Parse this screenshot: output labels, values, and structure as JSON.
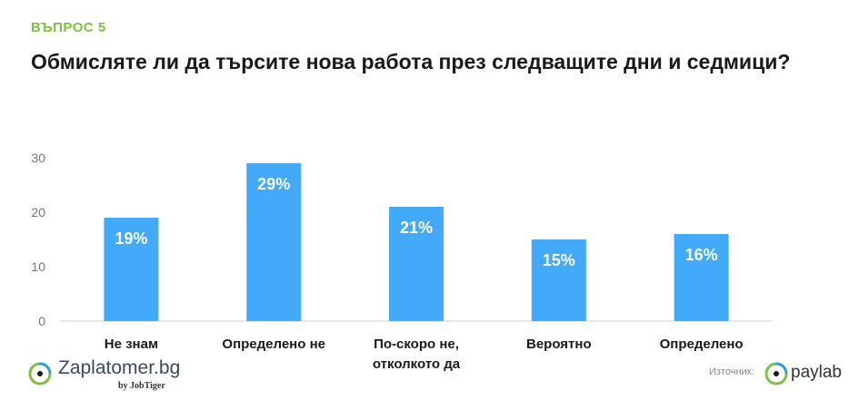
{
  "header": {
    "kicker": "ВЪПРОС 5",
    "title": "Обмисляте ли да търсите нова работа през следващите дни и седмици?"
  },
  "chart_data": {
    "type": "bar",
    "categories": [
      "Не знам",
      "Определено не",
      "По-скоро не, отколкото да",
      "Вероятно",
      "Определено"
    ],
    "category_lines": [
      [
        "Не знам"
      ],
      [
        "Определено не"
      ],
      [
        "По-скоро не,",
        "отколкото да"
      ],
      [
        "Вероятно"
      ],
      [
        "Определено"
      ]
    ],
    "values": [
      19,
      29,
      21,
      15,
      16
    ],
    "data_labels": [
      "19%",
      "29%",
      "21%",
      "15%",
      "16%"
    ],
    "yticks": [
      0,
      10,
      20,
      30
    ],
    "ylim": [
      0,
      30
    ],
    "grid": false,
    "bar_color": "#42aaf8"
  },
  "footer": {
    "brand": "Zaplatomer.bg",
    "byline": "by JobTiger",
    "source_label": "Източник:",
    "source_brand": "paylab",
    "colors": {
      "brand_green": "#7dc242",
      "brand_blue": "#2f9fd8"
    }
  }
}
